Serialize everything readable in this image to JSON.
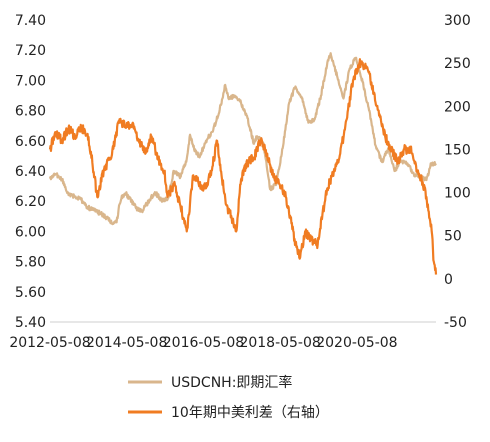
{
  "chart_data": {
    "type": "line",
    "title": "",
    "xlabel": "",
    "ylabel": "",
    "x_ticks": [
      "2012-05-08",
      "2014-05-08",
      "2016-05-08",
      "2018-05-08",
      "2020-05-08"
    ],
    "y_left": {
      "ticks": [
        "7.40",
        "7.20",
        "7.00",
        "6.80",
        "6.60",
        "6.40",
        "6.20",
        "6.00",
        "5.80",
        "5.60",
        "5.40"
      ],
      "lim": [
        5.4,
        7.4
      ]
    },
    "y_right": {
      "ticks": [
        "300",
        "250",
        "200",
        "150",
        "100",
        "50",
        "0",
        "-50"
      ],
      "lim": [
        -50,
        300
      ]
    },
    "x_range": [
      "2012-05-08",
      "2022-05-31"
    ],
    "grid": false,
    "legend_position": "bottom",
    "series": [
      {
        "name": "USDCNH:即期汇率",
        "axis": "left",
        "color": "#d9b68c",
        "points": [
          [
            "2012-05-08",
            6.35
          ],
          [
            "2012-07-01",
            6.38
          ],
          [
            "2012-09-01",
            6.34
          ],
          [
            "2012-11-01",
            6.24
          ],
          [
            "2013-01-01",
            6.23
          ],
          [
            "2013-03-01",
            6.21
          ],
          [
            "2013-05-01",
            6.16
          ],
          [
            "2013-07-01",
            6.14
          ],
          [
            "2013-09-01",
            6.12
          ],
          [
            "2013-11-01",
            6.09
          ],
          [
            "2014-01-01",
            6.05
          ],
          [
            "2014-02-01",
            6.06
          ],
          [
            "2014-03-01",
            6.18
          ],
          [
            "2014-04-01",
            6.24
          ],
          [
            "2014-05-01",
            6.25
          ],
          [
            "2014-06-01",
            6.22
          ],
          [
            "2014-08-01",
            6.16
          ],
          [
            "2014-10-01",
            6.13
          ],
          [
            "2014-12-01",
            6.2
          ],
          [
            "2015-02-01",
            6.26
          ],
          [
            "2015-04-01",
            6.21
          ],
          [
            "2015-06-01",
            6.21
          ],
          [
            "2015-08-01",
            6.4
          ],
          [
            "2015-10-01",
            6.36
          ],
          [
            "2015-12-01",
            6.48
          ],
          [
            "2016-01-01",
            6.64
          ],
          [
            "2016-02-01",
            6.56
          ],
          [
            "2016-04-01",
            6.49
          ],
          [
            "2016-06-01",
            6.6
          ],
          [
            "2016-08-01",
            6.66
          ],
          [
            "2016-10-01",
            6.78
          ],
          [
            "2016-12-01",
            6.97
          ],
          [
            "2017-01-01",
            6.88
          ],
          [
            "2017-03-01",
            6.9
          ],
          [
            "2017-05-01",
            6.85
          ],
          [
            "2017-07-01",
            6.75
          ],
          [
            "2017-09-01",
            6.58
          ],
          [
            "2017-10-01",
            6.63
          ],
          [
            "2017-12-01",
            6.58
          ],
          [
            "2018-02-01",
            6.28
          ],
          [
            "2018-04-01",
            6.31
          ],
          [
            "2018-06-01",
            6.55
          ],
          [
            "2018-08-01",
            6.85
          ],
          [
            "2018-10-01",
            6.96
          ],
          [
            "2018-12-01",
            6.88
          ],
          [
            "2019-02-01",
            6.72
          ],
          [
            "2019-04-01",
            6.74
          ],
          [
            "2019-06-01",
            6.9
          ],
          [
            "2019-08-01",
            7.12
          ],
          [
            "2019-09-01",
            7.18
          ],
          [
            "2019-11-01",
            7.03
          ],
          [
            "2020-01-01",
            6.88
          ],
          [
            "2020-03-01",
            7.08
          ],
          [
            "2020-05-01",
            7.15
          ],
          [
            "2020-07-01",
            6.99
          ],
          [
            "2020-09-01",
            6.8
          ],
          [
            "2020-11-01",
            6.57
          ],
          [
            "2021-01-01",
            6.46
          ],
          [
            "2021-03-01",
            6.55
          ],
          [
            "2021-05-01",
            6.4
          ],
          [
            "2021-07-01",
            6.47
          ],
          [
            "2021-09-01",
            6.45
          ],
          [
            "2021-11-01",
            6.38
          ],
          [
            "2022-01-01",
            6.36
          ],
          [
            "2022-03-01",
            6.34
          ],
          [
            "2022-04-15",
            6.45
          ],
          [
            "2022-05-31",
            6.45
          ]
        ]
      },
      {
        "name": "10年期中美利差（右轴）",
        "axis": "right",
        "color": "#f07c22",
        "points": [
          [
            "2012-05-08",
            150
          ],
          [
            "2012-07-01",
            170
          ],
          [
            "2012-09-01",
            160
          ],
          [
            "2012-11-01",
            175
          ],
          [
            "2013-01-01",
            165
          ],
          [
            "2013-03-01",
            175
          ],
          [
            "2013-05-01",
            168
          ],
          [
            "2013-06-15",
            135
          ],
          [
            "2013-08-01",
            95
          ],
          [
            "2013-10-01",
            125
          ],
          [
            "2013-12-01",
            140
          ],
          [
            "2014-01-15",
            160
          ],
          [
            "2014-03-01",
            185
          ],
          [
            "2014-05-01",
            175
          ],
          [
            "2014-07-01",
            180
          ],
          [
            "2014-09-01",
            160
          ],
          [
            "2014-11-01",
            145
          ],
          [
            "2015-01-01",
            165
          ],
          [
            "2015-03-01",
            140
          ],
          [
            "2015-05-01",
            125
          ],
          [
            "2015-06-01",
            95
          ],
          [
            "2015-08-01",
            110
          ],
          [
            "2015-10-01",
            85
          ],
          [
            "2015-12-01",
            55
          ],
          [
            "2016-02-01",
            120
          ],
          [
            "2016-04-01",
            110
          ],
          [
            "2016-06-01",
            105
          ],
          [
            "2016-08-01",
            130
          ],
          [
            "2016-09-15",
            160
          ],
          [
            "2016-11-01",
            115
          ],
          [
            "2016-12-15",
            85
          ],
          [
            "2017-02-01",
            70
          ],
          [
            "2017-03-15",
            55
          ],
          [
            "2017-05-01",
            115
          ],
          [
            "2017-07-01",
            135
          ],
          [
            "2017-09-01",
            140
          ],
          [
            "2017-11-01",
            160
          ],
          [
            "2018-01-01",
            145
          ],
          [
            "2018-03-01",
            120
          ],
          [
            "2018-05-01",
            110
          ],
          [
            "2018-07-01",
            95
          ],
          [
            "2018-08-15",
            70
          ],
          [
            "2018-10-01",
            40
          ],
          [
            "2018-11-15",
            25
          ],
          [
            "2019-01-01",
            55
          ],
          [
            "2019-03-01",
            45
          ],
          [
            "2019-05-01",
            40
          ],
          [
            "2019-06-15",
            75
          ],
          [
            "2019-08-01",
            105
          ],
          [
            "2019-10-01",
            125
          ],
          [
            "2019-12-01",
            145
          ],
          [
            "2020-02-01",
            185
          ],
          [
            "2020-04-01",
            230
          ],
          [
            "2020-06-01",
            250
          ],
          [
            "2020-08-01",
            245
          ],
          [
            "2020-09-01",
            240
          ],
          [
            "2020-10-15",
            215
          ],
          [
            "2020-12-01",
            195
          ],
          [
            "2021-02-01",
            165
          ],
          [
            "2021-04-01",
            150
          ],
          [
            "2021-06-01",
            135
          ],
          [
            "2021-08-01",
            150
          ],
          [
            "2021-10-01",
            150
          ],
          [
            "2021-12-01",
            125
          ],
          [
            "2022-01-15",
            115
          ],
          [
            "2022-03-01",
            95
          ],
          [
            "2022-04-01",
            70
          ],
          [
            "2022-04-20",
            55
          ],
          [
            "2022-05-10",
            20
          ],
          [
            "2022-05-31",
            5
          ]
        ]
      }
    ]
  }
}
